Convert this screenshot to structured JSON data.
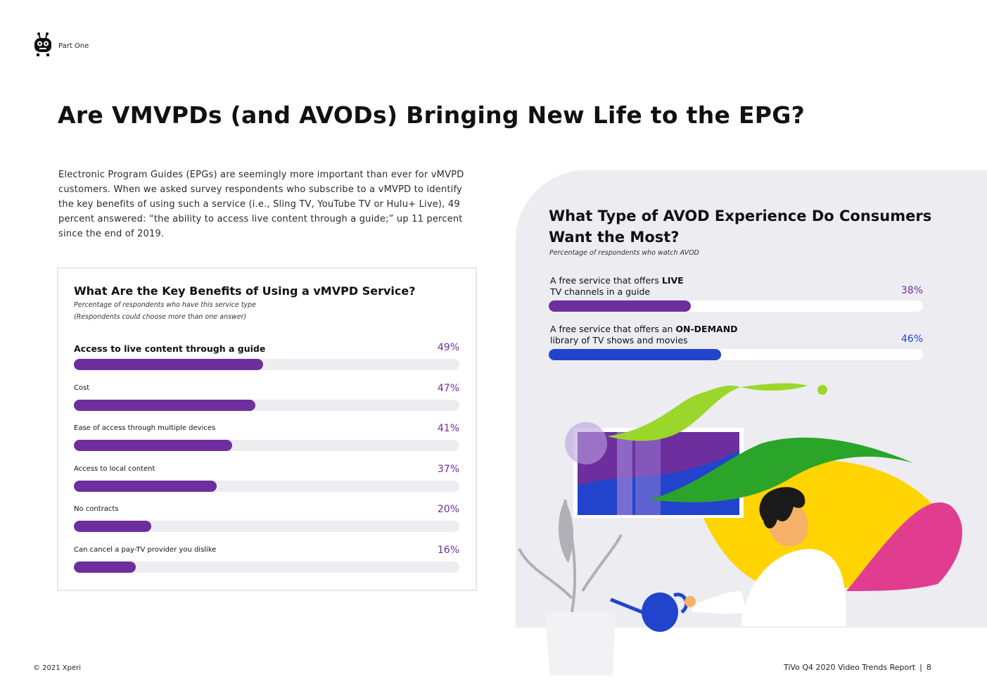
{
  "header": {
    "section_label": "Part One",
    "logo": "tivo-robot-logo"
  },
  "page_title": "Are VMVPDs (and AVODs) Bringing New Life to the EPG?",
  "intro_text": "Electronic Program Guides (EPGs) are seemingly more important than ever for vMVPD customers. When we asked survey respondents who subscribe to a vMVPD to identify the key benefits of using such a service (i.e., Sling TV, YouTube TV or Hulu+ Live), 49 percent answered: “the ability to access live content through a guide;” up 11 percent since the end of 2019.",
  "colors": {
    "purple": "#6e2f9e",
    "blue": "#2244cc",
    "track": "#ececf1",
    "panel": "#ececf1"
  },
  "chart_data": [
    {
      "type": "bar",
      "orientation": "horizontal",
      "title": "What Are the Key Benefits of Using a vMVPD Service?",
      "subtitle": "Percentage of respondents who have this service type",
      "note": "(Respondents could choose more than one answer)",
      "categories": [
        "Access to live content through a guide",
        "Cost",
        "Ease of access through multiple devices",
        "Access to local content",
        "No contracts",
        "Can cancel a pay-TV provider you dislike"
      ],
      "values": [
        49,
        47,
        41,
        37,
        20,
        16
      ],
      "value_labels": [
        "49%",
        "47%",
        "41%",
        "37%",
        "20%",
        "16%"
      ],
      "xlim": [
        0,
        100
      ],
      "unit": "%"
    },
    {
      "type": "bar",
      "orientation": "horizontal",
      "title": "What Type of AVOD Experience Do Consumers Want the Most?",
      "subtitle": "Percentage of respondents who watch AVOD",
      "categories": [
        {
          "pre": "A free service that offers ",
          "bold": "LIVE",
          "post": "TV channels in a guide"
        },
        {
          "pre": "A free service that offers an ",
          "bold": "ON-DEMAND",
          "post": "library of TV shows and movies"
        }
      ],
      "values": [
        38,
        46
      ],
      "value_labels": [
        "38%",
        "46%"
      ],
      "bar_colors": [
        "#6e2f9e",
        "#2244cc"
      ],
      "xlim": [
        0,
        100
      ],
      "unit": "%"
    }
  ],
  "footer": {
    "copyright": "© 2021 Xperi",
    "report": "TiVo Q4 2020 Video Trends Report",
    "page_number": "8"
  }
}
